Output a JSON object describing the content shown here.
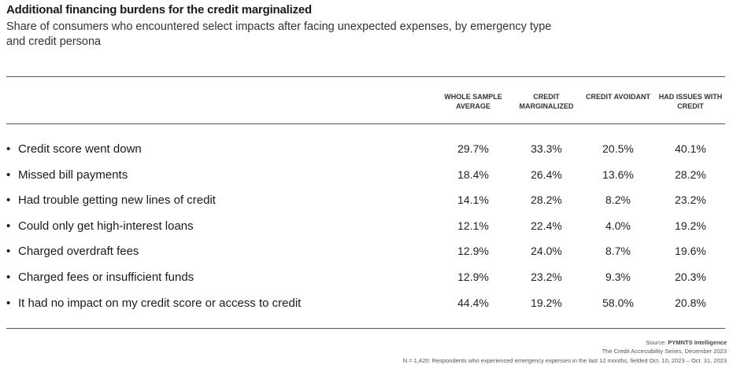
{
  "title": "Additional financing burdens for the credit marginalized",
  "subtitle": "Share of consumers who encountered select impacts after facing unexpected expenses, by emergency type and credit persona",
  "chart_data": {
    "type": "table",
    "columns": [
      "WHOLE SAMPLE AVERAGE",
      "CREDIT MARGINALIZED",
      "CREDIT AVOIDANT",
      "HAD ISSUES WITH CREDIT"
    ],
    "rows": [
      {
        "label": "Credit score went down",
        "values": [
          "29.7%",
          "33.3%",
          "20.5%",
          "40.1%"
        ]
      },
      {
        "label": "Missed bill payments",
        "values": [
          "18.4%",
          "26.4%",
          "13.6%",
          "28.2%"
        ]
      },
      {
        "label": "Had trouble getting new lines of credit",
        "values": [
          "14.1%",
          "28.2%",
          "8.2%",
          "23.2%"
        ]
      },
      {
        "label": "Could only get high-interest loans",
        "values": [
          "12.1%",
          "22.4%",
          "4.0%",
          "19.2%"
        ]
      },
      {
        "label": "Charged overdraft fees",
        "values": [
          "12.9%",
          "24.0%",
          "8.7%",
          "19.6%"
        ]
      },
      {
        "label": "Charged fees or insufficient funds",
        "values": [
          "12.9%",
          "23.2%",
          "9.3%",
          "20.3%"
        ]
      },
      {
        "label": "It had no impact on my credit score or access to credit",
        "values": [
          "44.4%",
          "19.2%",
          "58.0%",
          "20.8%"
        ]
      }
    ]
  },
  "bullet": "•",
  "footer": {
    "source_label": "Source:",
    "source_name": "PYMNTS Intelligence",
    "series": "The Credit Accessibility Series, December 2023",
    "note": "N = 1,420: Respondents who experienced emergency expenses in the last 12 months, fielded Oct. 10, 2023 – Oct. 31, 2023"
  }
}
